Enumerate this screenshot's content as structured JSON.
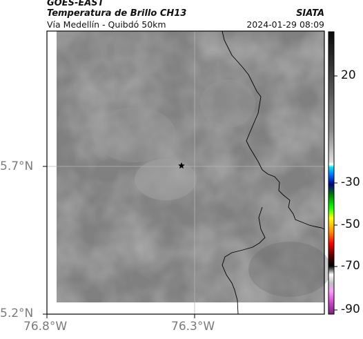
{
  "header": {
    "satellite": "GOES-EAST",
    "product": "Temperatura de Brillo CH13",
    "region": "Vía Medellín - Quibdó 50km",
    "agency": "SIATA",
    "datetime": "2024-01-29 08:09"
  },
  "map": {
    "lat_ticks": [
      "5.7°N",
      "5.2°N"
    ],
    "lon_ticks": [
      "76.8°W",
      "76.3°W"
    ],
    "marker": "star-marker"
  },
  "colorbar": {
    "ticks": [
      "20",
      "-30",
      "-50",
      "-70",
      "-90"
    ]
  },
  "colors": {
    "map_gray": "#808080",
    "border": "#000000"
  }
}
